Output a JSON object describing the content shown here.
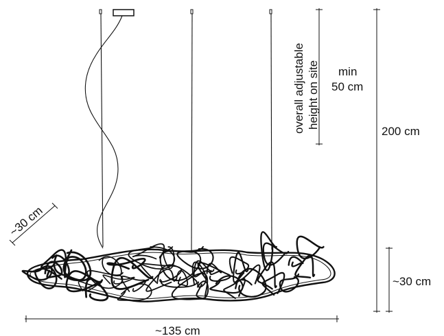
{
  "labels": {
    "overall_line1": "overall adjustable",
    "overall_line2": "height on site",
    "min_line1": "min",
    "min_line2": "50 cm",
    "total_height": "200 cm",
    "depth_left": "~30 cm",
    "body_height": "~30 cm",
    "width": "~135 cm"
  },
  "colors": {
    "line": "#111111",
    "text": "#111111",
    "background": "#ffffff"
  }
}
